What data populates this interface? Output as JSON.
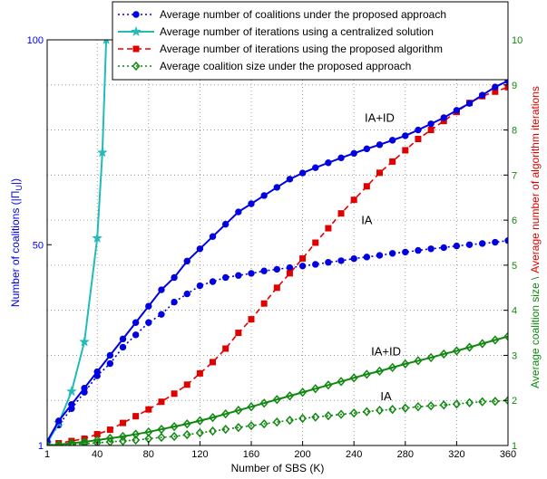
{
  "chart_data": {
    "type": "line",
    "xlabel": "Number of SBS (K)",
    "ylabel_left": "Number of coalitions (|Π",
    "ylabel_left_sub": "U",
    "ylabel_left_end": "|)",
    "ylabel_right_part1": "Average coalition size \\",
    "ylabel_right_part2": "Average number of algorithm iterations",
    "x_ticks": [
      "1",
      "40",
      "80",
      "120",
      "160",
      "200",
      "240",
      "280",
      "320",
      "360"
    ],
    "x_tick_values": [
      1,
      40,
      80,
      120,
      160,
      200,
      240,
      280,
      320,
      360
    ],
    "xlim": [
      1,
      360
    ],
    "y_left_ticks": [
      "1",
      "50",
      "100"
    ],
    "y_left_tick_values": [
      1,
      50,
      100
    ],
    "ylim_left": [
      1,
      100
    ],
    "y_right_ticks": [
      "1",
      "2",
      "3",
      "4",
      "5",
      "6",
      "7",
      "8",
      "9",
      "10"
    ],
    "y_right_tick_values": [
      1,
      2,
      3,
      4,
      5,
      6,
      7,
      8,
      9,
      10
    ],
    "ylim_right": [
      1,
      10
    ],
    "grid": true,
    "legend_position": "top",
    "annotations": [
      {
        "text": "IA+ID",
        "x": 260,
        "y_left": 80
      },
      {
        "text": "IA",
        "x": 250,
        "y_left": 55
      },
      {
        "text": "IA+ID",
        "x": 265,
        "y_left": 23
      },
      {
        "text": "IA",
        "x": 265,
        "y_left": 12
      }
    ],
    "series": [
      {
        "name": "Average number of coalitions under the proposed approach",
        "axis": "left",
        "color": "#0000e0",
        "marker": "circle",
        "line": "dotted",
        "x": [
          1,
          10,
          20,
          30,
          40,
          50,
          60,
          70,
          80,
          90,
          100,
          110,
          120,
          130,
          140,
          150,
          160,
          170,
          180,
          190,
          200,
          210,
          220,
          230,
          240,
          250,
          260,
          270,
          280,
          290,
          300,
          310,
          320,
          330,
          340,
          350,
          360
        ],
        "y": [
          2,
          6,
          10,
          14,
          18,
          21,
          25,
          28,
          31,
          33,
          36,
          38,
          40,
          41,
          42,
          42.5,
          43,
          43.6,
          44,
          44.4,
          44.8,
          45.2,
          45.7,
          46.1,
          46.6,
          47,
          47.4,
          47.9,
          48.2,
          48.6,
          49,
          49.3,
          49.7,
          50,
          50.3,
          50.6,
          51
        ]
      },
      {
        "name": "Average number of iterations using a centralized solution",
        "axis": "right",
        "color": "#22bbbb",
        "marker": "star",
        "line": "solid",
        "x": [
          1,
          10,
          20,
          30,
          40,
          44,
          47
        ],
        "y": [
          1.05,
          1.5,
          2.2,
          3.3,
          5.6,
          7.5,
          10
        ]
      },
      {
        "name": "Average number of iterations using the proposed algorithm",
        "axis": "right",
        "color": "#e00000",
        "marker": "square",
        "line": "dashed",
        "x": [
          1,
          10,
          20,
          30,
          40,
          50,
          60,
          70,
          80,
          90,
          100,
          110,
          120,
          130,
          140,
          150,
          160,
          170,
          180,
          190,
          200,
          210,
          220,
          230,
          240,
          250,
          260,
          270,
          280,
          290,
          300,
          310,
          320,
          330,
          340,
          350,
          360
        ],
        "y": [
          1.0,
          1.05,
          1.1,
          1.15,
          1.25,
          1.35,
          1.5,
          1.65,
          1.8,
          1.97,
          2.15,
          2.35,
          2.6,
          2.85,
          3.15,
          3.5,
          3.8,
          4.15,
          4.5,
          4.82,
          5.15,
          5.5,
          5.82,
          6.15,
          6.45,
          6.75,
          7.05,
          7.3,
          7.55,
          7.8,
          8.0,
          8.2,
          8.4,
          8.6,
          8.75,
          8.85,
          8.95
        ]
      },
      {
        "name": "Average coalition size under the proposed approach",
        "axis": "right",
        "color": "#118811",
        "marker": "diamond",
        "line": "dotted",
        "x": [
          1,
          10,
          20,
          30,
          40,
          50,
          60,
          70,
          80,
          90,
          100,
          110,
          120,
          130,
          140,
          150,
          160,
          170,
          180,
          190,
          200,
          210,
          220,
          230,
          240,
          250,
          260,
          270,
          280,
          290,
          300,
          310,
          320,
          330,
          340,
          350,
          360
        ],
        "y": [
          1.0,
          1.0,
          1.02,
          1.04,
          1.06,
          1.08,
          1.1,
          1.12,
          1.15,
          1.18,
          1.2,
          1.24,
          1.28,
          1.32,
          1.36,
          1.4,
          1.44,
          1.48,
          1.52,
          1.56,
          1.6,
          1.63,
          1.66,
          1.69,
          1.72,
          1.75,
          1.78,
          1.8,
          1.83,
          1.86,
          1.88,
          1.9,
          1.92,
          1.95,
          1.97,
          1.98,
          2.0
        ]
      },
      {
        "name": "",
        "axis": "left",
        "color": "#0000e0",
        "marker": "circle",
        "line": "solid",
        "x": [
          1,
          10,
          20,
          30,
          40,
          50,
          60,
          70,
          80,
          90,
          100,
          110,
          120,
          130,
          140,
          150,
          160,
          170,
          180,
          190,
          200,
          210,
          220,
          230,
          240,
          250,
          260,
          270,
          280,
          290,
          300,
          310,
          320,
          330,
          340,
          350,
          360
        ],
        "y": [
          2,
          7,
          11,
          15,
          19,
          23,
          27,
          31,
          35,
          39,
          42,
          46,
          49,
          52,
          55,
          58,
          60,
          62,
          64,
          66,
          67.5,
          68.8,
          70,
          71.2,
          72.3,
          73.4,
          74.4,
          75.5,
          76.6,
          78,
          79.5,
          81,
          82.8,
          84.5,
          86.5,
          88.5,
          90
        ]
      },
      {
        "name": "",
        "axis": "right",
        "color": "#118811",
        "marker": "diamond",
        "line": "solid",
        "x": [
          1,
          10,
          20,
          30,
          40,
          50,
          60,
          70,
          80,
          90,
          100,
          110,
          120,
          130,
          140,
          150,
          160,
          170,
          180,
          190,
          200,
          210,
          220,
          230,
          240,
          250,
          260,
          270,
          280,
          290,
          300,
          310,
          320,
          330,
          340,
          350,
          360
        ],
        "y": [
          1.0,
          1.02,
          1.05,
          1.08,
          1.12,
          1.16,
          1.2,
          1.25,
          1.3,
          1.36,
          1.42,
          1.48,
          1.55,
          1.62,
          1.7,
          1.78,
          1.86,
          1.94,
          2.02,
          2.1,
          2.18,
          2.26,
          2.34,
          2.42,
          2.5,
          2.58,
          2.65,
          2.73,
          2.81,
          2.88,
          2.95,
          3.03,
          3.1,
          3.18,
          3.26,
          3.34,
          3.42
        ]
      }
    ]
  }
}
